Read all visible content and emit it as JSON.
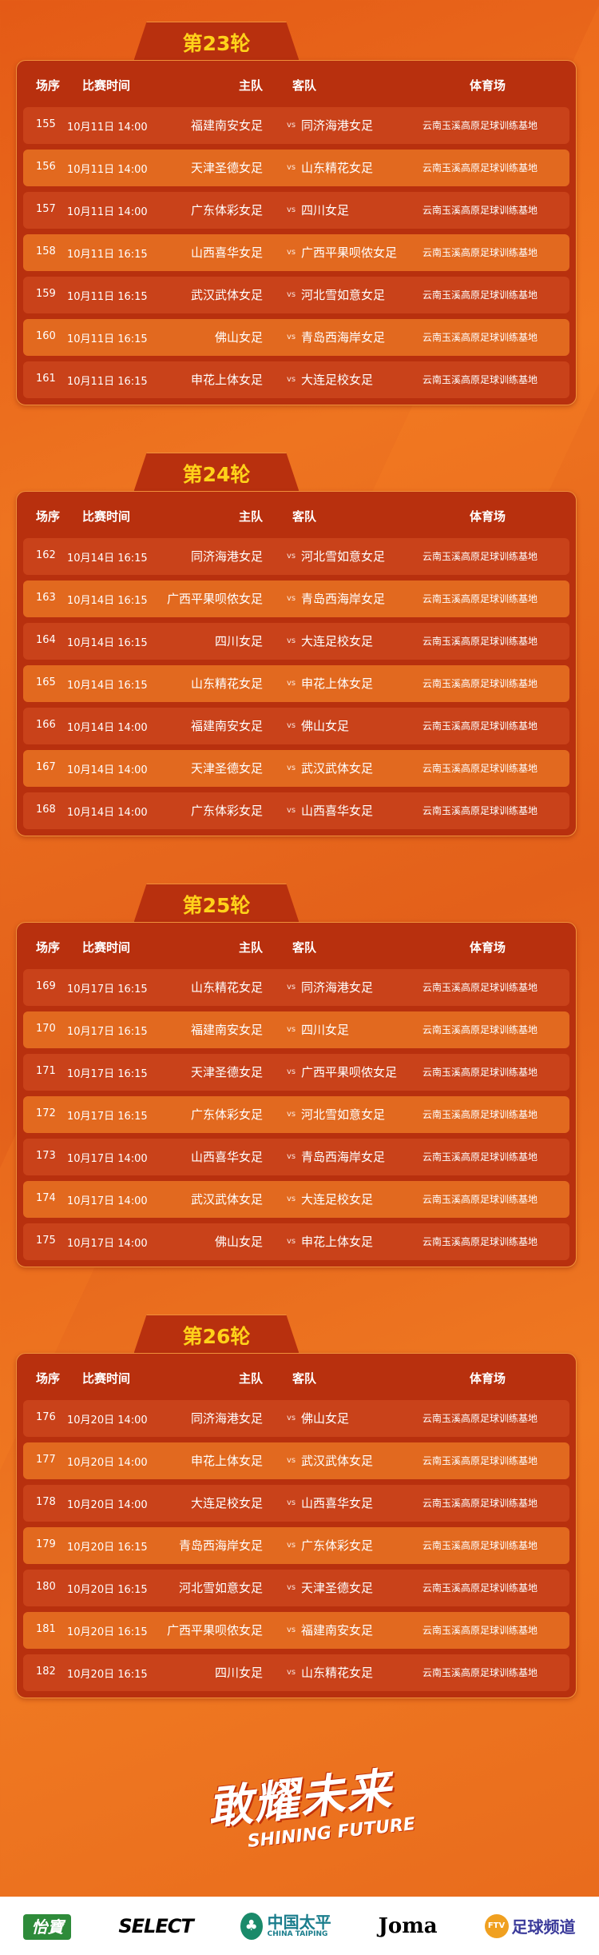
{
  "rounds": [
    {
      "title": "第23轮",
      "headers": {
        "no": "场序",
        "time": "比赛时间",
        "home": "主队",
        "away": "客队",
        "venue": "体育场"
      },
      "matches": [
        {
          "no": "155",
          "time": "10月11日 14:00",
          "home": "福建南安女足",
          "vs": "vs",
          "away": "同济海港女足",
          "venue": "云南玉溪高原足球训练基地"
        },
        {
          "no": "156",
          "time": "10月11日 14:00",
          "home": "天津圣德女足",
          "vs": "vs",
          "away": "山东精花女足",
          "venue": "云南玉溪高原足球训练基地"
        },
        {
          "no": "157",
          "time": "10月11日 14:00",
          "home": "广东体彩女足",
          "vs": "vs",
          "away": "四川女足",
          "venue": "云南玉溪高原足球训练基地"
        },
        {
          "no": "158",
          "time": "10月11日 16:15",
          "home": "山西喜华女足",
          "vs": "vs",
          "away": "广西平果呗侬女足",
          "venue": "云南玉溪高原足球训练基地"
        },
        {
          "no": "159",
          "time": "10月11日 16:15",
          "home": "武汉武体女足",
          "vs": "vs",
          "away": "河北雪如意女足",
          "venue": "云南玉溪高原足球训练基地"
        },
        {
          "no": "160",
          "time": "10月11日 16:15",
          "home": "佛山女足",
          "vs": "vs",
          "away": "青岛西海岸女足",
          "venue": "云南玉溪高原足球训练基地"
        },
        {
          "no": "161",
          "time": "10月11日 16:15",
          "home": "申花上体女足",
          "vs": "vs",
          "away": "大连足校女足",
          "venue": "云南玉溪高原足球训练基地"
        }
      ]
    },
    {
      "title": "第24轮",
      "headers": {
        "no": "场序",
        "time": "比赛时间",
        "home": "主队",
        "away": "客队",
        "venue": "体育场"
      },
      "matches": [
        {
          "no": "162",
          "time": "10月14日 16:15",
          "home": "同济海港女足",
          "vs": "vs",
          "away": "河北雪如意女足",
          "venue": "云南玉溪高原足球训练基地"
        },
        {
          "no": "163",
          "time": "10月14日 16:15",
          "home": "广西平果呗侬女足",
          "vs": "vs",
          "away": "青岛西海岸女足",
          "venue": "云南玉溪高原足球训练基地"
        },
        {
          "no": "164",
          "time": "10月14日 16:15",
          "home": "四川女足",
          "vs": "vs",
          "away": "大连足校女足",
          "venue": "云南玉溪高原足球训练基地"
        },
        {
          "no": "165",
          "time": "10月14日 16:15",
          "home": "山东精花女足",
          "vs": "vs",
          "away": "申花上体女足",
          "venue": "云南玉溪高原足球训练基地"
        },
        {
          "no": "166",
          "time": "10月14日 14:00",
          "home": "福建南安女足",
          "vs": "vs",
          "away": "佛山女足",
          "venue": "云南玉溪高原足球训练基地"
        },
        {
          "no": "167",
          "time": "10月14日 14:00",
          "home": "天津圣德女足",
          "vs": "vs",
          "away": "武汉武体女足",
          "venue": "云南玉溪高原足球训练基地"
        },
        {
          "no": "168",
          "time": "10月14日 14:00",
          "home": "广东体彩女足",
          "vs": "vs",
          "away": "山西喜华女足",
          "venue": "云南玉溪高原足球训练基地"
        }
      ]
    },
    {
      "title": "第25轮",
      "headers": {
        "no": "场序",
        "time": "比赛时间",
        "home": "主队",
        "away": "客队",
        "venue": "体育场"
      },
      "matches": [
        {
          "no": "169",
          "time": "10月17日 16:15",
          "home": "山东精花女足",
          "vs": "vs",
          "away": "同济海港女足",
          "venue": "云南玉溪高原足球训练基地"
        },
        {
          "no": "170",
          "time": "10月17日 16:15",
          "home": "福建南安女足",
          "vs": "vs",
          "away": "四川女足",
          "venue": "云南玉溪高原足球训练基地"
        },
        {
          "no": "171",
          "time": "10月17日 16:15",
          "home": "天津圣德女足",
          "vs": "vs",
          "away": "广西平果呗侬女足",
          "venue": "云南玉溪高原足球训练基地"
        },
        {
          "no": "172",
          "time": "10月17日 16:15",
          "home": "广东体彩女足",
          "vs": "vs",
          "away": "河北雪如意女足",
          "venue": "云南玉溪高原足球训练基地"
        },
        {
          "no": "173",
          "time": "10月17日 14:00",
          "home": "山西喜华女足",
          "vs": "vs",
          "away": "青岛西海岸女足",
          "venue": "云南玉溪高原足球训练基地"
        },
        {
          "no": "174",
          "time": "10月17日 14:00",
          "home": "武汉武体女足",
          "vs": "vs",
          "away": "大连足校女足",
          "venue": "云南玉溪高原足球训练基地"
        },
        {
          "no": "175",
          "time": "10月17日 14:00",
          "home": "佛山女足",
          "vs": "vs",
          "away": "申花上体女足",
          "venue": "云南玉溪高原足球训练基地"
        }
      ]
    },
    {
      "title": "第26轮",
      "headers": {
        "no": "场序",
        "time": "比赛时间",
        "home": "主队",
        "away": "客队",
        "venue": "体育场"
      },
      "matches": [
        {
          "no": "176",
          "time": "10月20日 14:00",
          "home": "同济海港女足",
          "vs": "vs",
          "away": "佛山女足",
          "venue": "云南玉溪高原足球训练基地"
        },
        {
          "no": "177",
          "time": "10月20日 14:00",
          "home": "申花上体女足",
          "vs": "vs",
          "away": "武汉武体女足",
          "venue": "云南玉溪高原足球训练基地"
        },
        {
          "no": "178",
          "time": "10月20日 14:00",
          "home": "大连足校女足",
          "vs": "vs",
          "away": "山西喜华女足",
          "venue": "云南玉溪高原足球训练基地"
        },
        {
          "no": "179",
          "time": "10月20日 16:15",
          "home": "青岛西海岸女足",
          "vs": "vs",
          "away": "广东体彩女足",
          "venue": "云南玉溪高原足球训练基地"
        },
        {
          "no": "180",
          "time": "10月20日 16:15",
          "home": "河北雪如意女足",
          "vs": "vs",
          "away": "天津圣德女足",
          "venue": "云南玉溪高原足球训练基地"
        },
        {
          "no": "181",
          "time": "10月20日 16:15",
          "home": "广西平果呗侬女足",
          "vs": "vs",
          "away": "福建南安女足",
          "venue": "云南玉溪高原足球训练基地"
        },
        {
          "no": "182",
          "time": "10月20日 16:15",
          "home": "四川女足",
          "vs": "vs",
          "away": "山东精花女足",
          "venue": "云南玉溪高原足球训练基地"
        }
      ]
    }
  ],
  "slogan": {
    "cn": "敢耀未来",
    "en": "SHINING FUTURE"
  },
  "sponsors": [
    {
      "name": "怡寶",
      "color": "#2e8b3a"
    },
    {
      "name": "SELECT",
      "color": "#111111"
    },
    {
      "name": "中国太平",
      "sub": "CHINA TAIPING",
      "color": "#1a7d8c"
    },
    {
      "name": "Joma",
      "color": "#111111"
    },
    {
      "name": "足球频道",
      "badge": "FTV",
      "color": "#3a3a9a"
    }
  ],
  "colors": {
    "title": "#ffd21a",
    "panel": "#b8300e",
    "row_odd": "#c9421a",
    "row_even": "#e2691f"
  }
}
